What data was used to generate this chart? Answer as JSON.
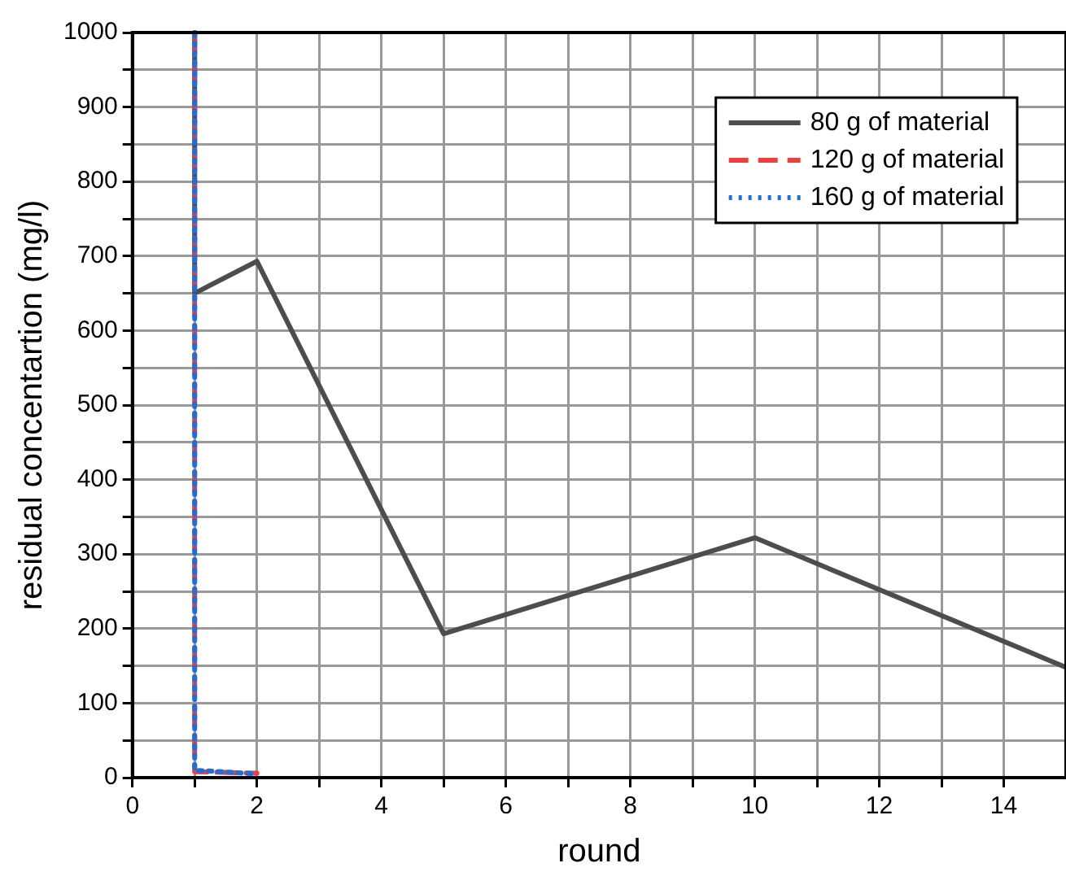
{
  "chart_data": {
    "type": "line",
    "xlabel": "round",
    "ylabel": "residual concentartion (mg/l)",
    "xlim": [
      0,
      15
    ],
    "ylim": [
      0,
      1000
    ],
    "xticks": [
      0,
      {
        "value": 1,
        "label": null
      },
      2,
      {
        "value": 3,
        "label": null
      },
      4,
      {
        "value": 5,
        "label": null
      },
      6,
      {
        "value": 7,
        "label": null
      },
      8,
      {
        "value": 9,
        "label": null
      },
      10,
      {
        "value": 11,
        "label": null
      },
      12,
      {
        "value": 13,
        "label": null
      },
      14
    ],
    "yticks": [
      0,
      {
        "value": 50,
        "label": null
      },
      100,
      {
        "value": 150,
        "label": null
      },
      200,
      {
        "value": 250,
        "label": null
      },
      300,
      {
        "value": 350,
        "label": null
      },
      400,
      {
        "value": 450,
        "label": null
      },
      500,
      {
        "value": 550,
        "label": null
      },
      600,
      {
        "value": 650,
        "label": null
      },
      700,
      {
        "value": 750,
        "label": null
      },
      800,
      {
        "value": 850,
        "label": null
      },
      900,
      {
        "value": 950,
        "label": null
      },
      1000
    ],
    "grid": true,
    "legend": "top right",
    "marker": "none",
    "series": [
      {
        "name": "80 g of material",
        "color": "#4d4d4d",
        "line_style": "solid",
        "x": [
          1,
          1,
          2,
          5,
          10,
          15
        ],
        "values": [
          1000,
          650,
          693,
          193,
          322,
          148
        ]
      },
      {
        "name": "120 g of material",
        "color": "#f03c3c",
        "line_style": "dashed",
        "x": [
          1,
          1,
          2
        ],
        "values": [
          1000,
          8,
          6
        ]
      },
      {
        "name": "160 g of material",
        "color": "#1f6fd8",
        "line_style": "dotted",
        "x": [
          1,
          1,
          2
        ],
        "values": [
          1000,
          10,
          5
        ]
      }
    ]
  }
}
